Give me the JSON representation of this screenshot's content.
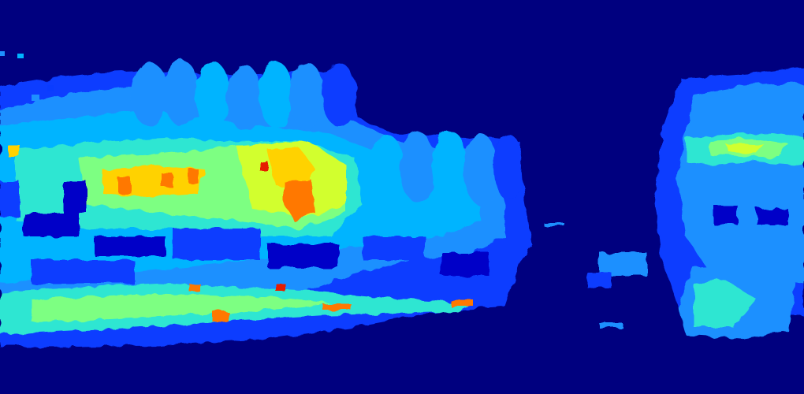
{
  "image": {
    "kind": "heatmap-visualization",
    "colormap": "jet",
    "palette": {
      "background": "#00007f",
      "level_1": "#0000c8",
      "level_2": "#0a3cff",
      "level_3": "#1e90ff",
      "level_4": "#00b4ff",
      "level_5": "#2ee6d2",
      "level_6": "#7dff82",
      "level_7": "#d2ff2e",
      "level_8": "#ffd200",
      "level_9": "#ff7800",
      "level_10": "#e61e00"
    }
  }
}
